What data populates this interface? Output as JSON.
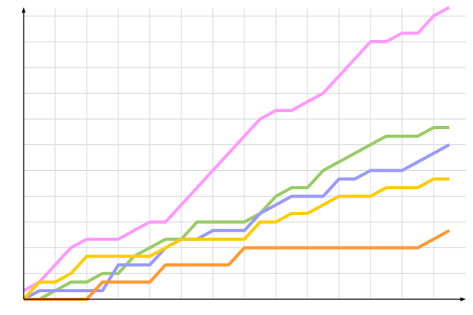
{
  "chart_data": {
    "type": "line",
    "title": "",
    "xlabel": "",
    "ylabel": "",
    "x": [
      0,
      1,
      2,
      3,
      4,
      5,
      6,
      7,
      8,
      9,
      10,
      11,
      12,
      13,
      14,
      15,
      16,
      17,
      18,
      19,
      20,
      21,
      22,
      23,
      24,
      25,
      26,
      27
    ],
    "xlim": [
      0,
      27
    ],
    "ylim": [
      0,
      34
    ],
    "grid": true,
    "x_grid_step": 2,
    "y_grid_step": 3,
    "legend": "none",
    "series": [
      {
        "color": "#ff99ff",
        "values": [
          1,
          2,
          4,
          6,
          7,
          7,
          7,
          8,
          9,
          9,
          11,
          13,
          15,
          17,
          19,
          21,
          22,
          22,
          23,
          24,
          26,
          28,
          30,
          30,
          31,
          31,
          33,
          34
        ]
      },
      {
        "color": "#99cc66",
        "values": [
          0,
          0,
          1,
          2,
          2,
          3,
          3,
          5,
          6,
          7,
          7,
          9,
          9,
          9,
          9,
          10,
          12,
          13,
          13,
          15,
          16,
          17,
          18,
          19,
          19,
          19,
          20,
          20
        ]
      },
      {
        "color": "#9999ff",
        "values": [
          0,
          1,
          1,
          1,
          1,
          1,
          4,
          4,
          4,
          6,
          7,
          7,
          8,
          8,
          8,
          10,
          11,
          12,
          12,
          12,
          14,
          14,
          15,
          15,
          15,
          16,
          17,
          18
        ]
      },
      {
        "color": "#ffcc00",
        "values": [
          0,
          2,
          2,
          3,
          5,
          5,
          5,
          5,
          5,
          6,
          7,
          7,
          7,
          7,
          7,
          9,
          9,
          10,
          10,
          11,
          12,
          12,
          12,
          13,
          13,
          13,
          14,
          14
        ]
      },
      {
        "color": "#ff9933",
        "values": [
          0,
          0,
          0,
          0,
          0,
          2,
          2,
          2,
          2,
          4,
          4,
          4,
          4,
          4,
          6,
          6,
          6,
          6,
          6,
          6,
          6,
          6,
          6,
          6,
          6,
          6,
          7,
          8
        ]
      }
    ]
  }
}
